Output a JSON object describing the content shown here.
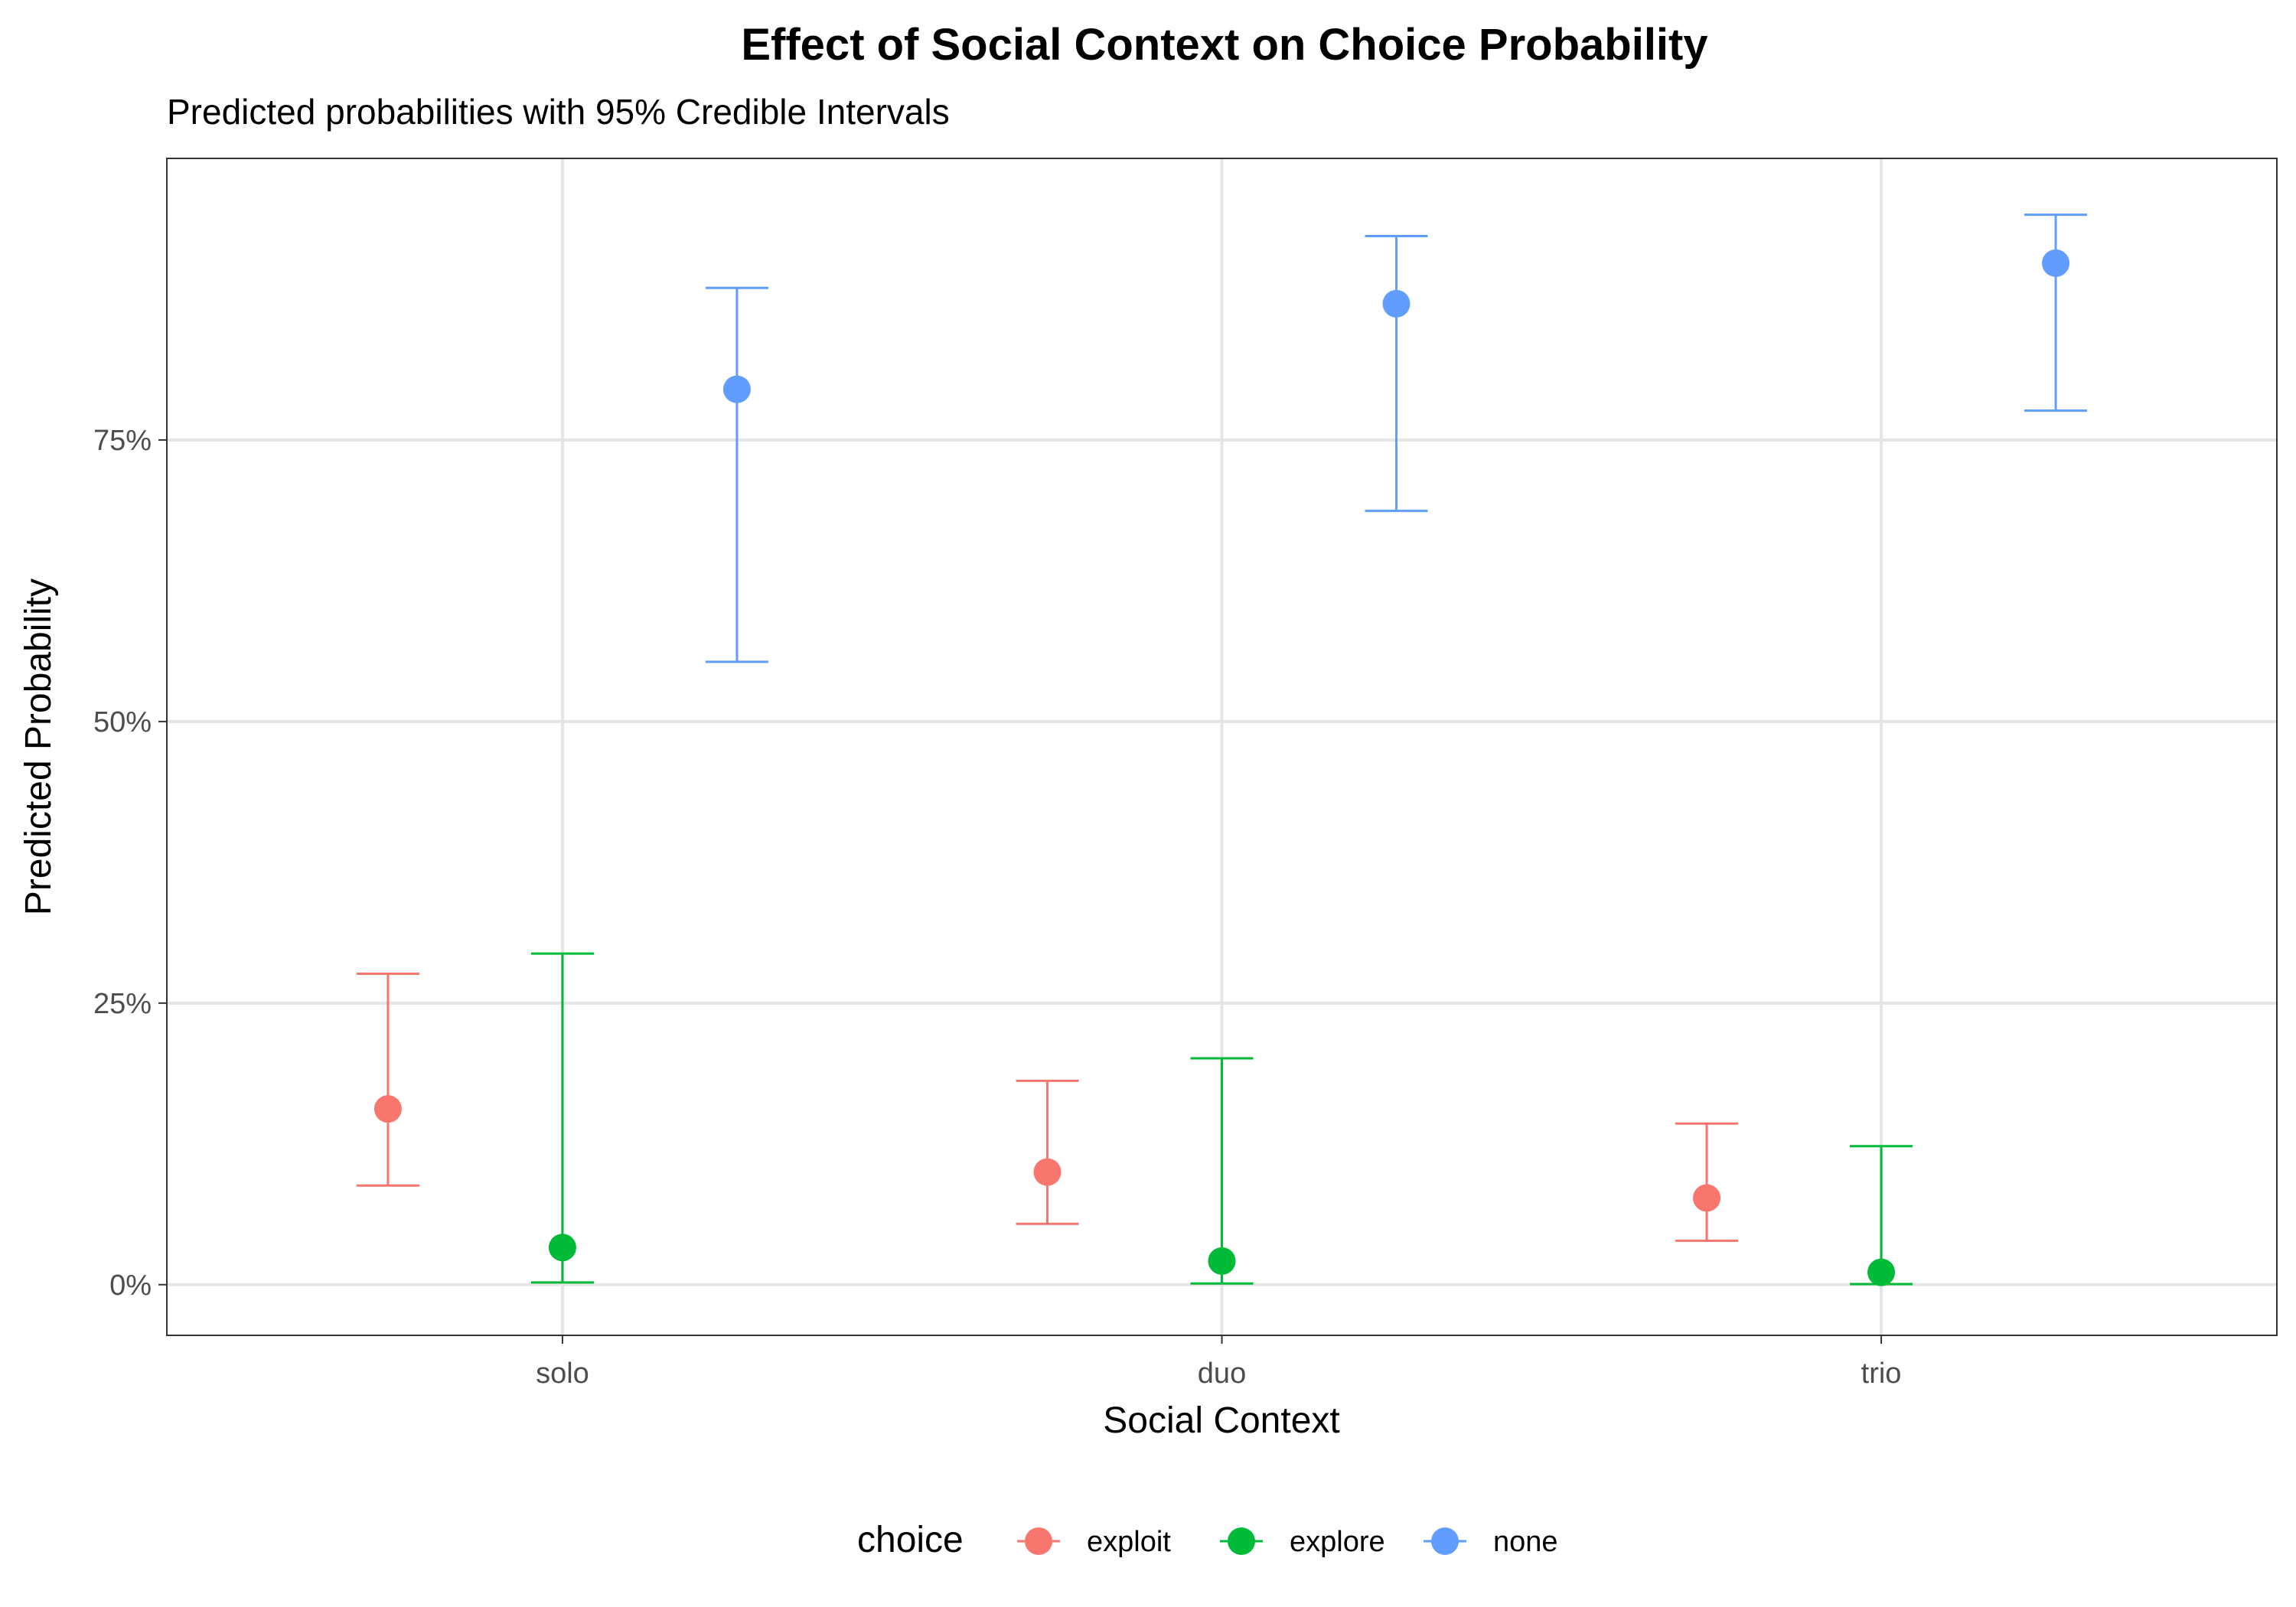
{
  "chart_data": {
    "type": "scatter",
    "title": "Effect of Social Context on Choice Probability",
    "subtitle": "Predicted probabilities with 95% Credible Intervals",
    "xlabel": "Social Context",
    "ylabel": "Predicted Probability",
    "categories": [
      "solo",
      "duo",
      "trio"
    ],
    "ylim": [
      -0.045,
      1.0
    ],
    "yticks": [
      0,
      0.25,
      0.5,
      0.75
    ],
    "ytick_labels": [
      "0%",
      "25%",
      "50%",
      "75%"
    ],
    "grid": true,
    "legend": {
      "title": "choice",
      "position": "bottom"
    },
    "series": [
      {
        "name": "exploit",
        "color": "#F8766D",
        "values": [
          0.156,
          0.1,
          0.077
        ],
        "lower": [
          0.088,
          0.054,
          0.039
        ],
        "upper": [
          0.276,
          0.181,
          0.143
        ]
      },
      {
        "name": "explore",
        "color": "#00BA38",
        "values": [
          0.033,
          0.021,
          0.011
        ],
        "lower": [
          0.002,
          0.001,
          0.0005
        ],
        "upper": [
          0.294,
          0.201,
          0.123
        ]
      },
      {
        "name": "none",
        "color": "#619CFF",
        "values": [
          0.795,
          0.871,
          0.907
        ],
        "lower": [
          0.553,
          0.687,
          0.776
        ],
        "upper": [
          0.885,
          0.931,
          0.95
        ]
      }
    ]
  }
}
